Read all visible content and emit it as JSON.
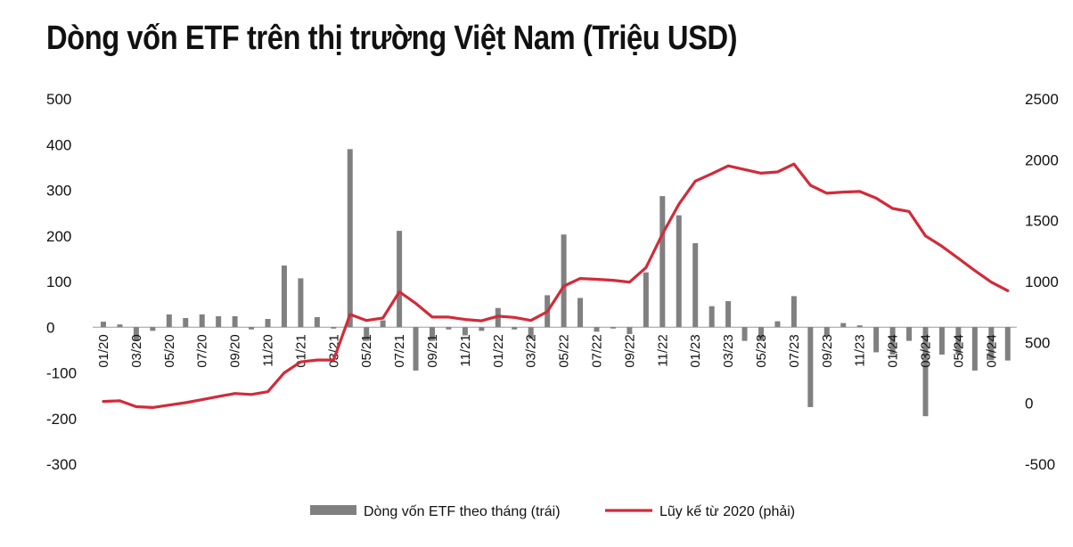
{
  "chart_data": {
    "type": "bar+line",
    "title": "Dòng vốn ETF trên thị trường Việt Nam (Triệu USD)",
    "y_left": {
      "min": -300,
      "max": 500,
      "ticks": [
        "500",
        "400",
        "300",
        "200",
        "100",
        "0",
        "-100",
        "-200",
        "-300"
      ]
    },
    "y_right": {
      "min": -500,
      "max": 2500,
      "ticks": [
        "2500",
        "2000",
        "1500",
        "1000",
        "500",
        "0",
        "-500"
      ]
    },
    "x_tick_labels": [
      "01/20",
      "03/20",
      "05/20",
      "07/20",
      "09/20",
      "11/20",
      "01/21",
      "03/21",
      "05/21",
      "07/21",
      "09/21",
      "11/21",
      "01/22",
      "03/22",
      "05/22",
      "07/22",
      "09/22",
      "11/22",
      "01/23",
      "03/23",
      "05/23",
      "07/23",
      "09/23",
      "11/23",
      "01/24",
      "03/24",
      "05/24",
      "07/24"
    ],
    "x_months": [
      "01/20",
      "02/20",
      "03/20",
      "04/20",
      "05/20",
      "06/20",
      "07/20",
      "08/20",
      "09/20",
      "10/20",
      "11/20",
      "12/20",
      "01/21",
      "02/21",
      "03/21",
      "04/21",
      "05/21",
      "06/21",
      "07/21",
      "08/21",
      "09/21",
      "10/21",
      "11/21",
      "12/21",
      "01/22",
      "02/22",
      "03/22",
      "04/22",
      "05/22",
      "06/22",
      "07/22",
      "08/22",
      "09/22",
      "10/22",
      "11/22",
      "12/22",
      "01/23",
      "02/23",
      "03/23",
      "04/23",
      "05/23",
      "06/23",
      "07/23",
      "08/23",
      "09/23",
      "10/23",
      "11/23",
      "12/23",
      "01/24",
      "02/24",
      "03/24",
      "04/24",
      "05/24",
      "06/24",
      "07/24",
      "08/24"
    ],
    "series": [
      {
        "name": "Dòng vốn ETF theo tháng (trái)",
        "type": "bar",
        "axis": "left",
        "color": "#808080",
        "values": [
          12,
          6,
          -30,
          -8,
          28,
          20,
          28,
          24,
          24,
          -5,
          18,
          135,
          107,
          22,
          -3,
          390,
          -30,
          15,
          211,
          -95,
          -30,
          -5,
          -18,
          -8,
          42,
          -5,
          -25,
          70,
          203,
          64,
          -10,
          -3,
          -15,
          120,
          287,
          245,
          184,
          46,
          57,
          -30,
          -30,
          13,
          68,
          -175,
          -20,
          9,
          4,
          -55,
          -60,
          -30,
          -195,
          -60,
          -60,
          -95,
          -72,
          -73
        ]
      },
      {
        "name": "Lũy kế từ 2020 (phải)",
        "type": "line",
        "axis": "right",
        "color": "#d12b3a",
        "values": [
          15,
          20,
          -28,
          -35,
          -15,
          5,
          30,
          55,
          80,
          72,
          95,
          250,
          340,
          355,
          355,
          730,
          680,
          700,
          915,
          820,
          708,
          708,
          688,
          677,
          715,
          705,
          680,
          752,
          962,
          1025,
          1018,
          1010,
          995,
          1115,
          1390,
          1635,
          1825,
          1885,
          1950,
          1920,
          1890,
          1900,
          1965,
          1790,
          1725,
          1735,
          1740,
          1685,
          1600,
          1575,
          1375,
          1290,
          1190,
          1090,
          995,
          925
        ]
      }
    ],
    "legend": {
      "position": "bottom"
    }
  }
}
